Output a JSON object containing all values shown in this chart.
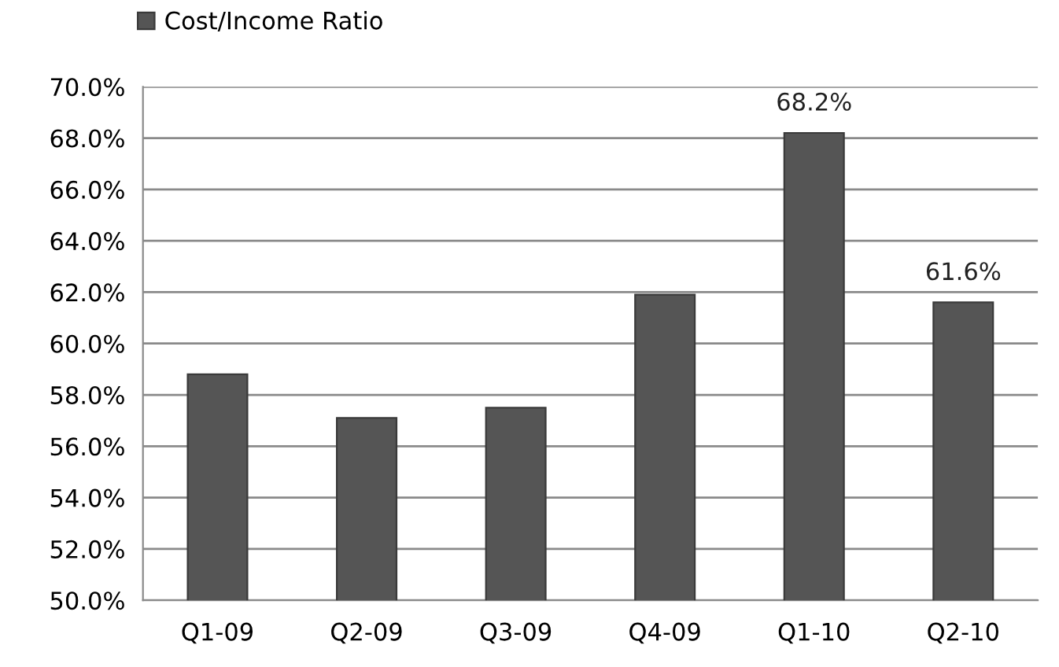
{
  "chart_data": {
    "type": "bar",
    "categories": [
      "Q1-09",
      "Q2-09",
      "Q3-09",
      "Q4-09",
      "Q1-10",
      "Q2-10"
    ],
    "series": [
      {
        "name": "Cost/Income Ratio",
        "color": "#555555",
        "values": [
          58.8,
          57.1,
          57.5,
          61.9,
          68.2,
          61.6
        ],
        "value_labels": [
          null,
          null,
          null,
          null,
          "68.2%",
          "61.6%"
        ]
      }
    ],
    "ylim": [
      50,
      70
    ],
    "yticks": [
      {
        "value": 50,
        "label": "50.0%"
      },
      {
        "value": 52,
        "label": "52.0%"
      },
      {
        "value": 54,
        "label": "54.0%"
      },
      {
        "value": 56,
        "label": "56.0%"
      },
      {
        "value": 58,
        "label": "58.0%"
      },
      {
        "value": 60,
        "label": "60.0%"
      },
      {
        "value": 62,
        "label": "62.0%"
      },
      {
        "value": 64,
        "label": "64.0%"
      },
      {
        "value": 66,
        "label": "66.0%"
      },
      {
        "value": 68,
        "label": "68.0%"
      },
      {
        "value": 70,
        "label": "70.0%"
      }
    ],
    "grid": "y",
    "legend": "top left"
  }
}
